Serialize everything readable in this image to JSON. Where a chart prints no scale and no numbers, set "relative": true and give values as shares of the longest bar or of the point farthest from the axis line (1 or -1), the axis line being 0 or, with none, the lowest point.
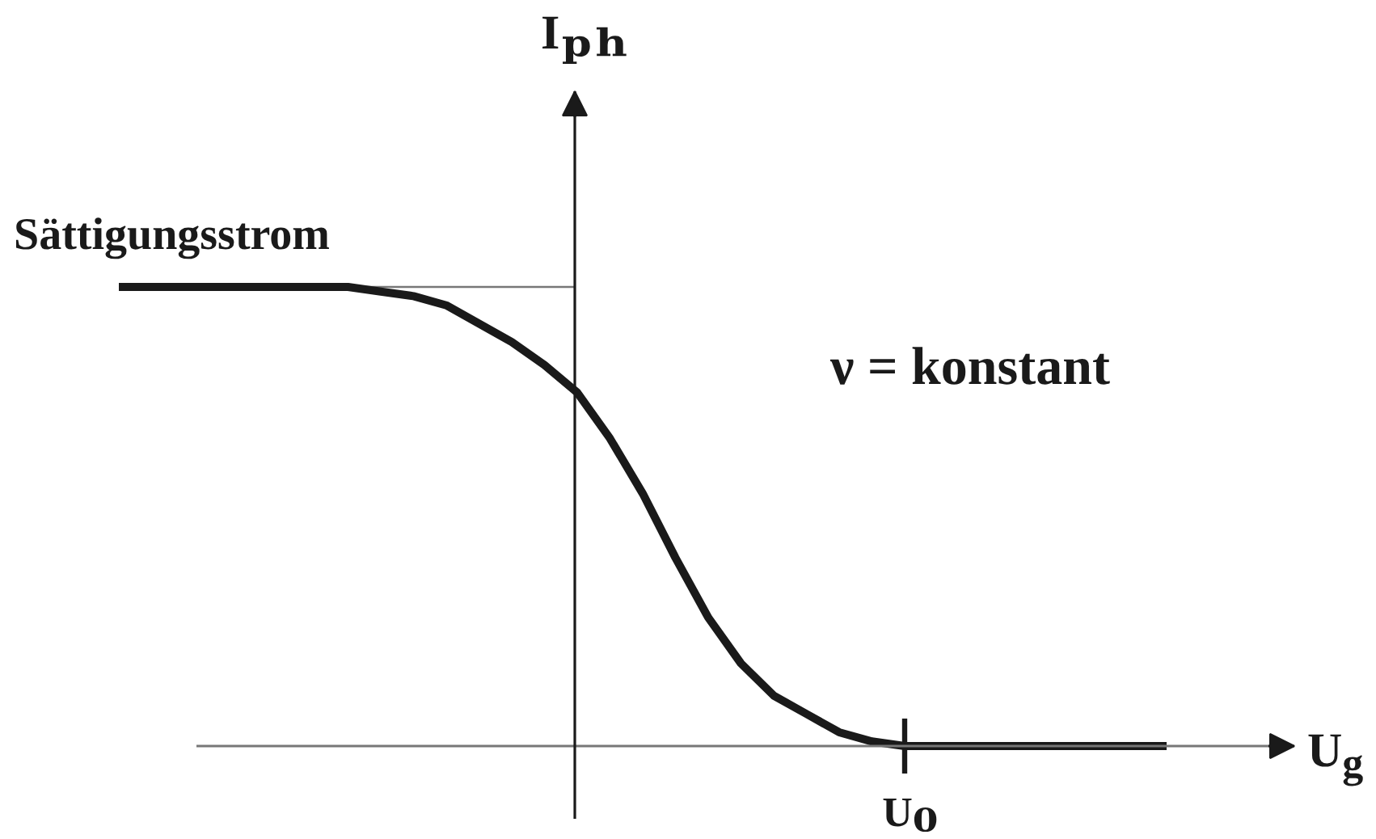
{
  "chart_data": {
    "type": "line",
    "relative": true,
    "xlabel": "U$_{g}$",
    "ylabel": "Iₚₕ",
    "categories": [
      null,
      null,
      null,
      null,
      null,
      null,
      null,
      null,
      null,
      null,
      null,
      null,
      null,
      null,
      null,
      null,
      null,
      null,
      null,
      null,
      null,
      null,
      null,
      null,
      null,
      null,
      null,
      null,
      null,
      null,
      null,
      null,
      null
    ],
    "series": [
      {
        "color": "#1a1a1a",
        "values": [
          1,
          1,
          1,
          1,
          1,
          1,
          1,
          1,
          0.99,
          0.98,
          0.96,
          0.92,
          0.88,
          0.83,
          0.77,
          0.67,
          0.55,
          0.41,
          0.28,
          0.18,
          0.11,
          0.07,
          0.03,
          0.01,
          0,
          0,
          0,
          0,
          0,
          0,
          0,
          0,
          0
        ]
      }
    ],
    "ref_lines": [
      {
        "axis": "y",
        "value": 1,
        "label": "Sättigungsstrom",
        "color": "#777777"
      }
    ],
    "annotations": [
      {
        "text": "U₀",
        "y": 0
      },
      "ν = konstant"
    ]
  }
}
